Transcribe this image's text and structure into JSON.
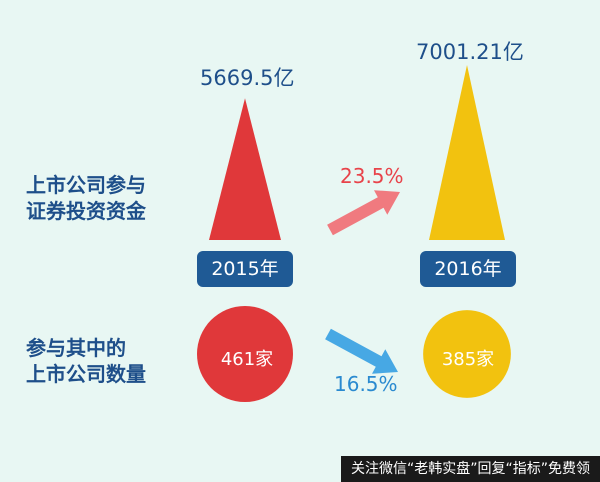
{
  "chart_data": {
    "type": "infographic",
    "row_labels": {
      "investment": [
        "上市公司参与",
        "证券投资资金"
      ],
      "companies": [
        "参与其中的",
        "上市公司数量"
      ]
    },
    "years": [
      "2015年",
      "2016年"
    ],
    "investment": {
      "values": [
        5669.5,
        7001.21
      ],
      "labels": [
        "5669.5亿",
        "7001.21亿"
      ],
      "change_label": "23.5%",
      "change_direction": "up"
    },
    "companies": {
      "values": [
        461,
        385
      ],
      "labels": [
        "461家",
        "385家"
      ],
      "change_label": "16.5%",
      "change_direction": "down"
    }
  },
  "colors": {
    "y2015": "#e0383a",
    "y2016": "#f2c20f",
    "up_arrow": "#f07a7f",
    "down_arrow": "#47a8e4",
    "text_blue": "#1e4f8a",
    "badge_bg": "#1f5a95"
  },
  "footer": "关注微信“老韩实盘”回复“指标”免费领"
}
